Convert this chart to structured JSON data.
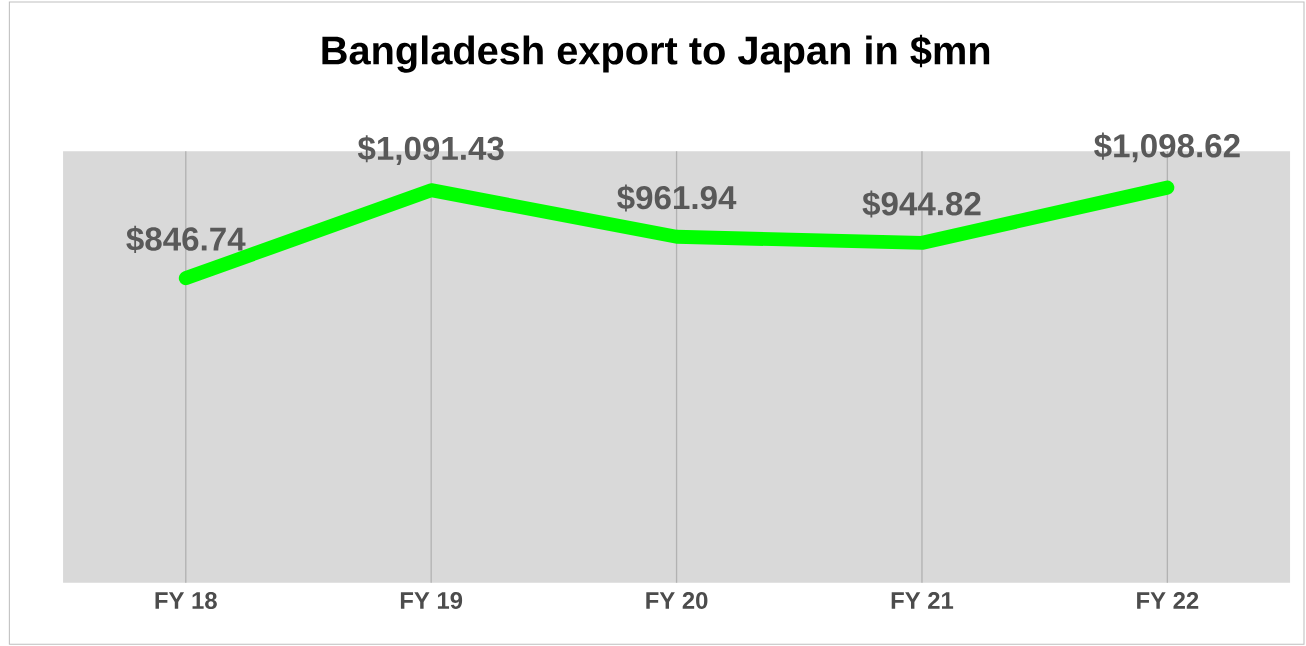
{
  "chart_data": {
    "type": "line",
    "title": "Bangladesh export to Japan in $mn",
    "categories": [
      "FY 18",
      "FY 19",
      "FY 20",
      "FY 21",
      "FY 22"
    ],
    "values": [
      846.74,
      1091.43,
      961.94,
      944.82,
      1098.62
    ],
    "value_labels": [
      "$846.74",
      "$1,091.43",
      "$961.94",
      "$944.82",
      "$1,098.62"
    ],
    "color": "#00ff00",
    "ylim": [
      0,
      1200
    ],
    "grid": "x",
    "tick_labels": "x",
    "marker": "none",
    "line_style": "solid"
  }
}
